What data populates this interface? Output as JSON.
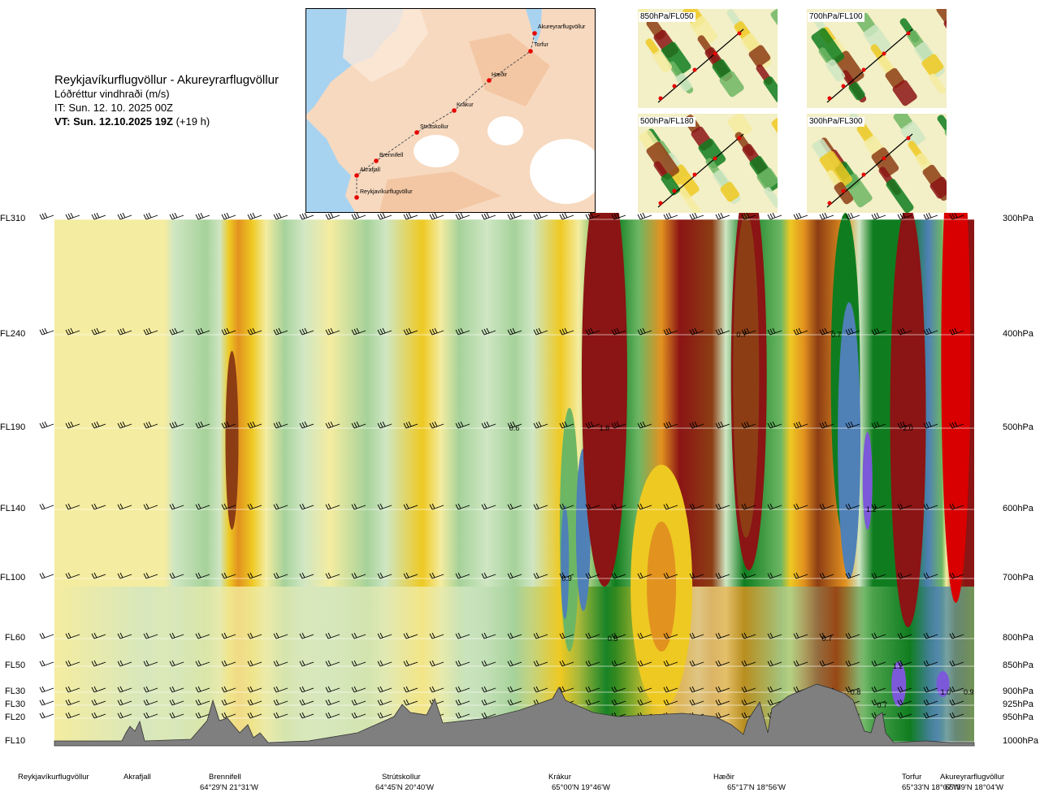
{
  "header": {
    "route": "Reykjavíkurflugvöllur - Akureyrarflugvöllur",
    "quantity": "Lóðréttur vindhraði (m/s)",
    "it": "IT: Sun. 12. 10. 2025 00Z",
    "vt_bold": "VT: Sun. 12.10.2025 19Z",
    "vt_offset": "(+19 h)"
  },
  "map": {
    "stations": [
      "Akureyrarflugvöllur",
      "Torfur",
      "Hæðir",
      "Krákur",
      "Strútskollur",
      "Brennifell",
      "Akrafjall",
      "Reykjavíkurflugvöllur"
    ]
  },
  "thumbnails": [
    {
      "label": "850hPa/FL050"
    },
    {
      "label": "700hPa/FL100"
    },
    {
      "label": "500hPa/FL180"
    },
    {
      "label": "300hPa/FL300"
    }
  ],
  "chart_data": {
    "type": "heatmap",
    "variable": "vertical wind speed (m/s)",
    "levels": [
      {
        "fl": "FL310",
        "hpa": "300hPa"
      },
      {
        "fl": "FL240",
        "hpa": "400hPa"
      },
      {
        "fl": "FL190",
        "hpa": "500hPa"
      },
      {
        "fl": "FL140",
        "hpa": "600hPa"
      },
      {
        "fl": "FL100",
        "hpa": "700hPa"
      },
      {
        "fl": "FL60",
        "hpa": "800hPa"
      },
      {
        "fl": "FL50",
        "hpa": "850hPa"
      },
      {
        "fl": "FL30",
        "hpa": "900hPa"
      },
      {
        "fl": "FL30",
        "hpa": "925hPa"
      },
      {
        "fl": "FL20",
        "hpa": "950hPa"
      },
      {
        "fl": "FL10",
        "hpa": "1000hPa"
      }
    ],
    "waypoints": [
      {
        "name": "Reykjavíkurflugvöllur",
        "coord": ""
      },
      {
        "name": "Akrafjall",
        "coord": ""
      },
      {
        "name": "Brennifell",
        "coord": "64°29'N 21°31'W"
      },
      {
        "name": "Strútskollur",
        "coord": "64°45'N 20°40'W"
      },
      {
        "name": "Krákur",
        "coord": "65°00'N 19°46'W"
      },
      {
        "name": "Hæðir",
        "coord": "65°17'N 18°56'W"
      },
      {
        "name": "Torfur",
        "coord": "65°33'N 18°07'W"
      },
      {
        "name": "Akureyrarflugvöllur",
        "coord": "65°39'N 18°04'W"
      }
    ],
    "contour_labels": [
      {
        "text": "0.6",
        "pos": 0.5,
        "level": "500hPa"
      },
      {
        "text": "1.8",
        "pos": 0.598,
        "level": "500hPa"
      },
      {
        "text": "0.7",
        "pos": 0.747,
        "level": "400hPa"
      },
      {
        "text": "0.7",
        "pos": 0.85,
        "level": "400hPa"
      },
      {
        "text": "2.0",
        "pos": 0.928,
        "level": "500hPa"
      },
      {
        "text": "1.2",
        "pos": 0.888,
        "level": "600hPa"
      },
      {
        "text": "0.9",
        "pos": 0.557,
        "level": "700hPa"
      },
      {
        "text": "0.5",
        "pos": 0.607,
        "level": "800hPa"
      },
      {
        "text": "0.7",
        "pos": 0.84,
        "level": "800hPa"
      },
      {
        "text": "1.2",
        "pos": 0.917,
        "level": "850hPa"
      },
      {
        "text": "0.8",
        "pos": 0.871,
        "level": "900hPa"
      },
      {
        "text": "1.0",
        "pos": 0.969,
        "level": "900hPa"
      },
      {
        "text": "0.9",
        "pos": 0.994,
        "level": "900hPa"
      },
      {
        "text": "0.7",
        "pos": 0.9,
        "level": "925hPa"
      }
    ],
    "colors": {
      "strong_down": "#8b1414",
      "down_brown": "#8c3d14",
      "down_orange": "#e2921f",
      "down_yellow": "#eec922",
      "weak_down": "#f4eca0",
      "neutral": "#ffffff",
      "weak_up": "#cfe6c3",
      "up_light": "#a6d29a",
      "up_mid": "#6db664",
      "up_green": "#0f7d1f",
      "strong_up_blue": "#4f80b6",
      "max_up_purple": "#7b59d9",
      "extreme_red": "#d80000",
      "terrain": "#7f7f7f"
    }
  }
}
